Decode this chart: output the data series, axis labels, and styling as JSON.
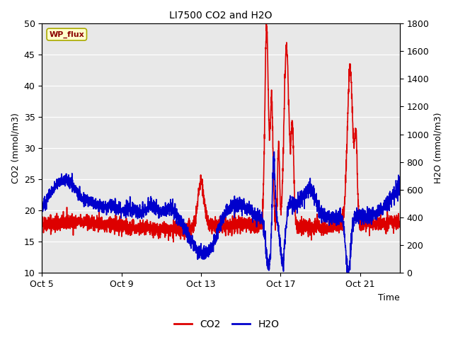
{
  "title": "LI7500 CO2 and H2O",
  "xlabel": "Time",
  "ylabel_left": "CO2 (mmol/m3)",
  "ylabel_right": "H2O (mmol/m3)",
  "ylim_left": [
    10,
    50
  ],
  "ylim_right": [
    0,
    1800
  ],
  "yticks_left": [
    10,
    15,
    20,
    25,
    30,
    35,
    40,
    45,
    50
  ],
  "yticks_right": [
    0,
    200,
    400,
    600,
    800,
    1000,
    1200,
    1400,
    1600,
    1800
  ],
  "xtick_labels": [
    "Oct 5",
    "Oct 9",
    "Oct 13",
    "Oct 17",
    "Oct 21"
  ],
  "xtick_pos": [
    0,
    4,
    8,
    12,
    16
  ],
  "xlim": [
    0,
    18
  ],
  "co2_color": "#dd0000",
  "h2o_color": "#0000cc",
  "plot_bg": "#e8e8e8",
  "legend_co2": "CO2",
  "legend_h2o": "H2O",
  "watermark_text": "WP_flux",
  "watermark_fgcolor": "#8b0000",
  "watermark_bgcolor": "#ffffcc",
  "watermark_edgecolor": "#aaaa00",
  "line_width": 1.2,
  "title_fontsize": 10,
  "axis_label_fontsize": 9,
  "tick_fontsize": 9,
  "legend_fontsize": 10
}
